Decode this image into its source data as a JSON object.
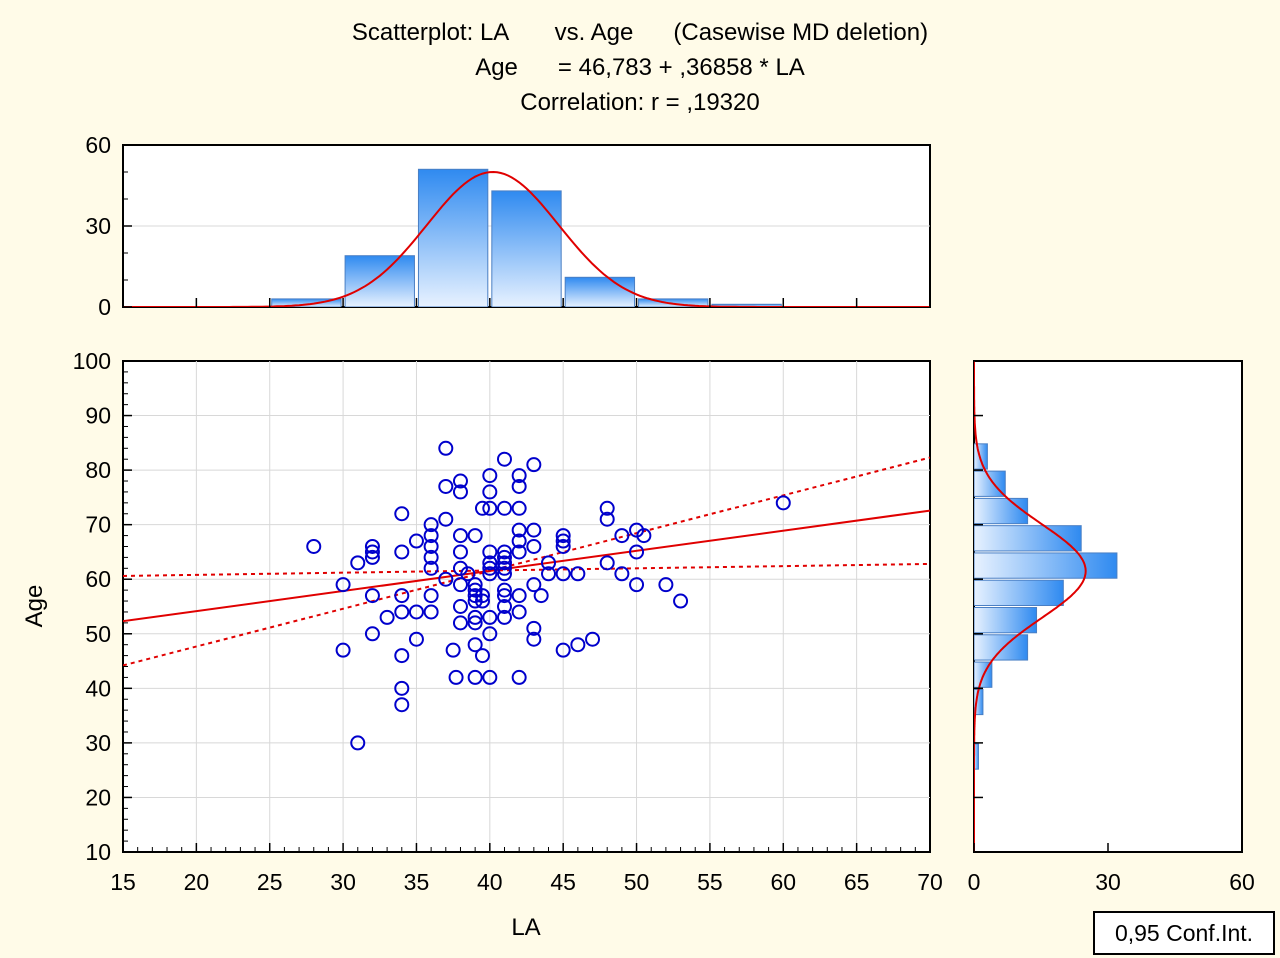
{
  "colors": {
    "background": "#fffbe8",
    "points": "#0000cc",
    "fit_line": "#e00000",
    "bar_dark": "#2f8af0",
    "bar_light": "#ffffff"
  },
  "chart_data": {
    "type": "scatter",
    "title_lines": [
      "Scatterplot: LA       vs. Age      (Casewise MD deletion)",
      "Age      = 46,783 + ,36858 * LA",
      "Correlation: r = ,19320"
    ],
    "xlabel": "LA",
    "ylabel": "Age",
    "xlim": [
      15,
      70
    ],
    "ylim": [
      10,
      100
    ],
    "x_ticks": [
      "15",
      "20",
      "25",
      "30",
      "35",
      "40",
      "45",
      "50",
      "55",
      "60",
      "65",
      "70"
    ],
    "y_ticks": [
      "10",
      "20",
      "30",
      "40",
      "50",
      "60",
      "70",
      "80",
      "90",
      "100"
    ],
    "grid": true,
    "regression": {
      "intercept": 46.783,
      "slope": 0.36858
    },
    "confidence_band": {
      "label": "0,95 Conf.Int.",
      "lower": [
        [
          15,
          60.6
        ],
        [
          70,
          62.8
        ]
      ],
      "upper": [
        [
          15,
          44.2
        ],
        [
          70,
          82.3
        ]
      ]
    },
    "points": [
      [
        28,
        66
      ],
      [
        30,
        59
      ],
      [
        30,
        47
      ],
      [
        31,
        63
      ],
      [
        31,
        30
      ],
      [
        32,
        66
      ],
      [
        32,
        65
      ],
      [
        32,
        64
      ],
      [
        32,
        57
      ],
      [
        32,
        50
      ],
      [
        33,
        53
      ],
      [
        34,
        72
      ],
      [
        34,
        65
      ],
      [
        34,
        57
      ],
      [
        34,
        54
      ],
      [
        34,
        46
      ],
      [
        34,
        40
      ],
      [
        34,
        37
      ],
      [
        35,
        67
      ],
      [
        35,
        54
      ],
      [
        35,
        49
      ],
      [
        36,
        70
      ],
      [
        36,
        68
      ],
      [
        36,
        66
      ],
      [
        36,
        64
      ],
      [
        36,
        62
      ],
      [
        36,
        57
      ],
      [
        36,
        54
      ],
      [
        37,
        84
      ],
      [
        37,
        77
      ],
      [
        37,
        71
      ],
      [
        37,
        60
      ],
      [
        37.5,
        47
      ],
      [
        37.7,
        42
      ],
      [
        38,
        78
      ],
      [
        38,
        76
      ],
      [
        38,
        68
      ],
      [
        38,
        65
      ],
      [
        38,
        62
      ],
      [
        38,
        59
      ],
      [
        38,
        55
      ],
      [
        38,
        52
      ],
      [
        38.5,
        61
      ],
      [
        39,
        68
      ],
      [
        39,
        59
      ],
      [
        39,
        58
      ],
      [
        39,
        57
      ],
      [
        39,
        56
      ],
      [
        39,
        53
      ],
      [
        39,
        52
      ],
      [
        39,
        48
      ],
      [
        39,
        42
      ],
      [
        39.5,
        73
      ],
      [
        39.5,
        57
      ],
      [
        39.5,
        56
      ],
      [
        39.5,
        46
      ],
      [
        40,
        79
      ],
      [
        40,
        76
      ],
      [
        40,
        73
      ],
      [
        40,
        65
      ],
      [
        40,
        63
      ],
      [
        40,
        62
      ],
      [
        40,
        61
      ],
      [
        40,
        53
      ],
      [
        40,
        50
      ],
      [
        40,
        42
      ],
      [
        41,
        82
      ],
      [
        41,
        73
      ],
      [
        41,
        65
      ],
      [
        41,
        64
      ],
      [
        41,
        63
      ],
      [
        41,
        62
      ],
      [
        41,
        61
      ],
      [
        41,
        58
      ],
      [
        41,
        57
      ],
      [
        41,
        55
      ],
      [
        41,
        53
      ],
      [
        42,
        79
      ],
      [
        42,
        77
      ],
      [
        42,
        73
      ],
      [
        42,
        69
      ],
      [
        42,
        67
      ],
      [
        42,
        65
      ],
      [
        42,
        57
      ],
      [
        42,
        54
      ],
      [
        42,
        42
      ],
      [
        43,
        81
      ],
      [
        43,
        69
      ],
      [
        43,
        66
      ],
      [
        43,
        59
      ],
      [
        43,
        51
      ],
      [
        43,
        49
      ],
      [
        43.5,
        57
      ],
      [
        44,
        63
      ],
      [
        44,
        61
      ],
      [
        45,
        68
      ],
      [
        45,
        67
      ],
      [
        45,
        66
      ],
      [
        45,
        61
      ],
      [
        45,
        47
      ],
      [
        46,
        61
      ],
      [
        46,
        48
      ],
      [
        47,
        49
      ],
      [
        48,
        73
      ],
      [
        48,
        71
      ],
      [
        48,
        63
      ],
      [
        49,
        68
      ],
      [
        49,
        61
      ],
      [
        50,
        69
      ],
      [
        50,
        65
      ],
      [
        50,
        59
      ],
      [
        50.5,
        68
      ],
      [
        52,
        59
      ],
      [
        53,
        56
      ],
      [
        60,
        74
      ]
    ],
    "top_histogram": {
      "variable": "LA",
      "ylim": [
        0,
        60
      ],
      "y_ticks": [
        "0",
        "30",
        "60"
      ],
      "bins": [
        {
          "from": 25,
          "to": 30,
          "count": 3
        },
        {
          "from": 30,
          "to": 35,
          "count": 19
        },
        {
          "from": 35,
          "to": 40,
          "count": 51
        },
        {
          "from": 40,
          "to": 45,
          "count": 43
        },
        {
          "from": 45,
          "to": 50,
          "count": 11
        },
        {
          "from": 50,
          "to": 55,
          "count": 3
        },
        {
          "from": 55,
          "to": 60,
          "count": 1
        }
      ],
      "normal_fit": {
        "mean": 40.2,
        "sd": 4.5,
        "peak": 50
      }
    },
    "right_histogram": {
      "variable": "Age",
      "xlim": [
        0,
        60
      ],
      "x_ticks": [
        "0",
        "30",
        "60"
      ],
      "bins": [
        {
          "from": 25,
          "to": 30,
          "count": 1
        },
        {
          "from": 30,
          "to": 35,
          "count": 0
        },
        {
          "from": 35,
          "to": 40,
          "count": 2
        },
        {
          "from": 40,
          "to": 45,
          "count": 4
        },
        {
          "from": 45,
          "to": 50,
          "count": 12
        },
        {
          "from": 50,
          "to": 55,
          "count": 14
        },
        {
          "from": 55,
          "to": 60,
          "count": 20
        },
        {
          "from": 60,
          "to": 65,
          "count": 32
        },
        {
          "from": 65,
          "to": 70,
          "count": 24
        },
        {
          "from": 70,
          "to": 75,
          "count": 12
        },
        {
          "from": 75,
          "to": 80,
          "count": 7
        },
        {
          "from": 80,
          "to": 85,
          "count": 3
        }
      ],
      "normal_fit": {
        "mean": 61.5,
        "sd": 8.6,
        "peak": 25
      }
    }
  }
}
